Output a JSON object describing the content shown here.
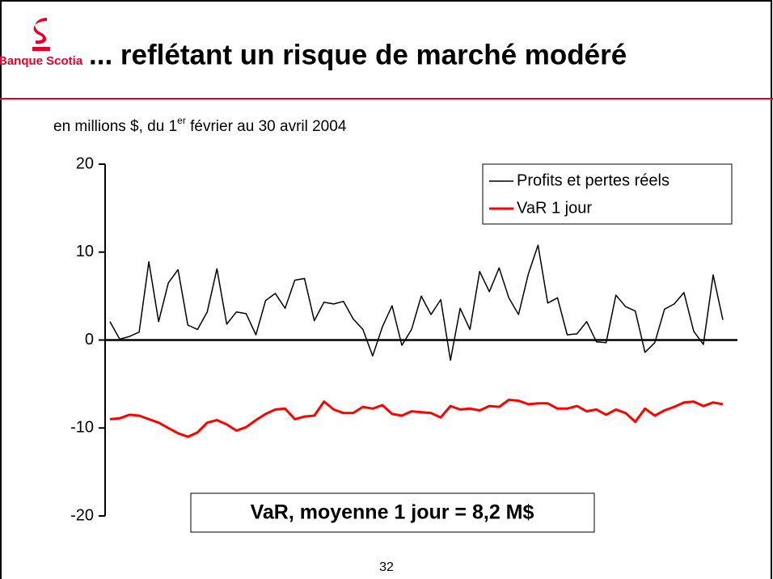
{
  "logo": "Banque Scotia",
  "title": "... reflétant un risque de marché modéré",
  "page_number": "32",
  "chart_data": {
    "type": "line",
    "subtitle": [
      "en millions $, du 1",
      "er",
      " février au 30 avril 2004"
    ],
    "annotation": "VaR, moyenne 1 jour = 8,2 M$",
    "ylim": [
      -20,
      20
    ],
    "yticks": [
      -20,
      -10,
      0,
      10,
      20
    ],
    "legend": "upper right",
    "series": [
      {
        "name": "Profits et pertes réels",
        "color": "#000000",
        "values": [
          2.1,
          0.1,
          0.4,
          0.9,
          8.9,
          2.1,
          6.5,
          8.0,
          1.7,
          1.2,
          3.2,
          8.1,
          1.8,
          3.2,
          3.0,
          0.6,
          4.5,
          5.3,
          3.6,
          6.8,
          7.0,
          2.2,
          4.3,
          4.1,
          4.4,
          2.4,
          1.2,
          -1.8,
          1.5,
          3.9,
          -0.6,
          1.2,
          5.0,
          2.9,
          4.6,
          -2.3,
          3.6,
          1.2,
          7.8,
          5.5,
          8.2,
          4.8,
          2.9,
          7.5,
          10.8,
          4.2,
          4.8,
          0.6,
          0.7,
          2.1,
          -0.2,
          -0.3,
          5.1,
          3.8,
          3.3,
          -1.4,
          -0.3,
          3.5,
          4.1,
          5.4,
          1.0,
          -0.5,
          7.4,
          2.3
        ]
      },
      {
        "name": "VaR 1 jour",
        "color": "#ff0000",
        "values": [
          -9.0,
          -8.9,
          -8.5,
          -8.6,
          -9.0,
          -9.4,
          -10.0,
          -10.6,
          -11.0,
          -10.5,
          -9.4,
          -9.1,
          -9.6,
          -10.3,
          -9.9,
          -9.1,
          -8.4,
          -7.9,
          -7.8,
          -9.0,
          -8.7,
          -8.6,
          -7.0,
          -7.9,
          -8.3,
          -8.3,
          -7.6,
          -7.8,
          -7.4,
          -8.4,
          -8.6,
          -8.1,
          -8.2,
          -8.3,
          -8.8,
          -7.5,
          -7.9,
          -7.8,
          -8.0,
          -7.5,
          -7.6,
          -6.8,
          -6.9,
          -7.3,
          -7.2,
          -7.2,
          -7.8,
          -7.8,
          -7.5,
          -8.1,
          -7.9,
          -8.5,
          -7.9,
          -8.3,
          -9.3,
          -7.8,
          -8.6,
          -8.0,
          -7.6,
          -7.1,
          -7.0,
          -7.5,
          -7.1,
          -7.3
        ]
      }
    ]
  }
}
